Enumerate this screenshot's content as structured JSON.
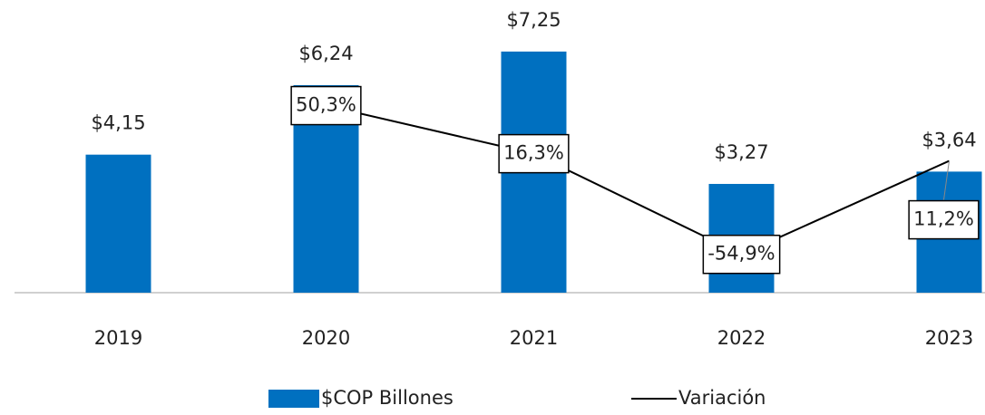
{
  "chart_data": {
    "type": "bar_line",
    "categories": [
      "2019",
      "2020",
      "2021",
      "2022",
      "2023"
    ],
    "series": [
      {
        "name": "$COP Billones",
        "type": "bar",
        "color": "#0070c0",
        "values": [
          4.15,
          6.24,
          7.25,
          3.27,
          3.64
        ],
        "value_labels": [
          "$4,15",
          "$6,24",
          "$7,25",
          "$3,27",
          "$3,64"
        ]
      },
      {
        "name": "Variación",
        "type": "line",
        "axis": "y2",
        "color": "#000000",
        "values": [
          null,
          50.3,
          16.3,
          -54.9,
          11.2
        ],
        "value_labels": [
          null,
          "50,3%",
          "16,3%",
          "-54,9%",
          "11,2%"
        ]
      }
    ],
    "ylim": [
      0,
      8.8
    ],
    "y2lim": [
      -82,
      125
    ],
    "legend": "bottom"
  }
}
